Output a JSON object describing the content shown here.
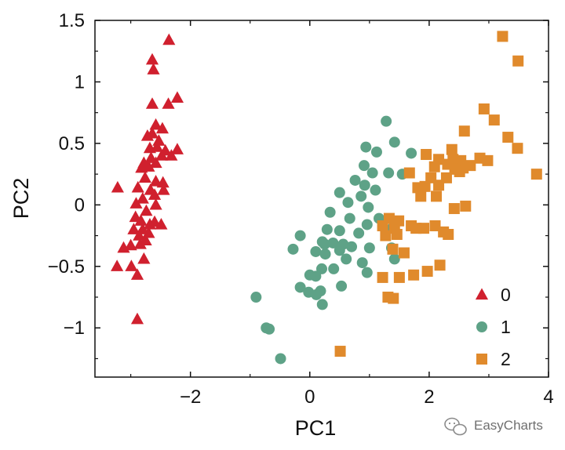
{
  "chart_data": {
    "type": "scatter",
    "xlabel": "PC1",
    "ylabel": "PC2",
    "xlim": [
      -3.6,
      4.0
    ],
    "ylim": [
      -1.4,
      1.5
    ],
    "xticks": [
      -2,
      0,
      2,
      4
    ],
    "xtick_labels": [
      "−2",
      "0",
      "2",
      "4"
    ],
    "yticks": [
      -1,
      -0.5,
      0,
      0.5,
      1,
      1.5
    ],
    "ytick_labels": [
      "−1",
      "−0.5",
      "0",
      "0.5",
      "1",
      "1.5"
    ],
    "grid": false,
    "legend_position": "bottom-right",
    "series": [
      {
        "name": "0",
        "marker": "triangle",
        "color": "#d0202e",
        "points": [
          [
            -2.36,
            1.34
          ],
          [
            -2.64,
            1.18
          ],
          [
            -2.62,
            1.1
          ],
          [
            -2.22,
            0.87
          ],
          [
            -2.64,
            0.82
          ],
          [
            -2.37,
            0.82
          ],
          [
            -2.58,
            0.65
          ],
          [
            -2.47,
            0.62
          ],
          [
            -2.64,
            0.58
          ],
          [
            -2.72,
            0.56
          ],
          [
            -2.53,
            0.52
          ],
          [
            -2.56,
            0.47
          ],
          [
            -2.68,
            0.46
          ],
          [
            -2.42,
            0.44
          ],
          [
            -2.48,
            0.4
          ],
          [
            -2.22,
            0.45
          ],
          [
            -2.32,
            0.4
          ],
          [
            -2.66,
            0.38
          ],
          [
            -2.78,
            0.34
          ],
          [
            -2.58,
            0.34
          ],
          [
            -2.7,
            0.31
          ],
          [
            -2.82,
            0.3
          ],
          [
            -2.76,
            0.22
          ],
          [
            -2.58,
            0.19
          ],
          [
            -2.46,
            0.18
          ],
          [
            -2.88,
            0.14
          ],
          [
            -2.67,
            0.12
          ],
          [
            -2.45,
            0.12
          ],
          [
            -3.22,
            0.14
          ],
          [
            -2.6,
            0.08
          ],
          [
            -2.8,
            0.05
          ],
          [
            -2.91,
            0.01
          ],
          [
            -2.58,
            0.0
          ],
          [
            -2.74,
            -0.05
          ],
          [
            -2.92,
            -0.1
          ],
          [
            -2.83,
            -0.13
          ],
          [
            -2.6,
            -0.14
          ],
          [
            -2.68,
            -0.16
          ],
          [
            -2.49,
            -0.16
          ],
          [
            -2.8,
            -0.2
          ],
          [
            -2.95,
            -0.2
          ],
          [
            -2.7,
            -0.23
          ],
          [
            -2.86,
            -0.25
          ],
          [
            -2.75,
            -0.29
          ],
          [
            -2.84,
            -0.32
          ],
          [
            -3.0,
            -0.33
          ],
          [
            -3.12,
            -0.35
          ],
          [
            -2.78,
            -0.44
          ],
          [
            -3.23,
            -0.5
          ],
          [
            -2.99,
            -0.5
          ],
          [
            -2.89,
            -0.57
          ],
          [
            -2.89,
            -0.93
          ]
        ]
      },
      {
        "name": "1",
        "marker": "circle",
        "color": "#5ea287",
        "points": [
          [
            1.28,
            0.68
          ],
          [
            0.94,
            0.47
          ],
          [
            1.42,
            0.51
          ],
          [
            1.12,
            0.43
          ],
          [
            1.7,
            0.42
          ],
          [
            0.91,
            0.32
          ],
          [
            1.05,
            0.26
          ],
          [
            1.32,
            0.26
          ],
          [
            1.55,
            0.25
          ],
          [
            0.76,
            0.2
          ],
          [
            0.92,
            0.16
          ],
          [
            1.1,
            0.12
          ],
          [
            0.5,
            0.1
          ],
          [
            0.86,
            0.07
          ],
          [
            0.64,
            0.02
          ],
          [
            0.98,
            -0.02
          ],
          [
            0.34,
            -0.06
          ],
          [
            0.67,
            -0.11
          ],
          [
            1.16,
            -0.11
          ],
          [
            0.96,
            -0.16
          ],
          [
            1.38,
            -0.19
          ],
          [
            0.29,
            -0.2
          ],
          [
            0.5,
            -0.21
          ],
          [
            0.82,
            -0.23
          ],
          [
            -0.16,
            -0.25
          ],
          [
            0.21,
            -0.3
          ],
          [
            0.39,
            -0.31
          ],
          [
            0.56,
            -0.32
          ],
          [
            0.25,
            -0.32
          ],
          [
            0.7,
            -0.34
          ],
          [
            1.0,
            -0.35
          ],
          [
            1.37,
            -0.35
          ],
          [
            -0.28,
            -0.36
          ],
          [
            0.1,
            -0.38
          ],
          [
            0.5,
            -0.37
          ],
          [
            0.26,
            -0.4
          ],
          [
            0.61,
            -0.44
          ],
          [
            1.42,
            -0.44
          ],
          [
            0.88,
            -0.47
          ],
          [
            0.2,
            -0.52
          ],
          [
            0.4,
            -0.52
          ],
          [
            0.1,
            -0.58
          ],
          [
            0.96,
            -0.55
          ],
          [
            0.0,
            -0.57
          ],
          [
            0.53,
            -0.66
          ],
          [
            -0.16,
            -0.67
          ],
          [
            0.18,
            -0.7
          ],
          [
            -0.02,
            -0.71
          ],
          [
            0.11,
            -0.73
          ],
          [
            -0.9,
            -0.75
          ],
          [
            0.21,
            -0.81
          ],
          [
            -0.73,
            -1.0
          ],
          [
            -0.68,
            -1.01
          ],
          [
            -0.49,
            -1.25
          ]
        ]
      },
      {
        "name": "2",
        "marker": "square",
        "color": "#e08a2c",
        "points": [
          [
            3.23,
            1.37
          ],
          [
            3.49,
            1.17
          ],
          [
            2.92,
            0.78
          ],
          [
            3.09,
            0.69
          ],
          [
            2.59,
            0.6
          ],
          [
            3.32,
            0.55
          ],
          [
            3.48,
            0.46
          ],
          [
            2.38,
            0.45
          ],
          [
            1.95,
            0.41
          ],
          [
            2.16,
            0.37
          ],
          [
            2.85,
            0.38
          ],
          [
            2.4,
            0.37
          ],
          [
            2.53,
            0.36
          ],
          [
            2.31,
            0.33
          ],
          [
            2.98,
            0.36
          ],
          [
            2.09,
            0.31
          ],
          [
            2.57,
            0.3
          ],
          [
            2.69,
            0.32
          ],
          [
            2.43,
            0.29
          ],
          [
            2.51,
            0.27
          ],
          [
            1.67,
            0.26
          ],
          [
            3.8,
            0.25
          ],
          [
            2.29,
            0.22
          ],
          [
            2.03,
            0.22
          ],
          [
            2.16,
            0.16
          ],
          [
            1.93,
            0.15
          ],
          [
            1.81,
            0.14
          ],
          [
            1.86,
            0.07
          ],
          [
            2.12,
            0.07
          ],
          [
            2.61,
            -0.01
          ],
          [
            2.42,
            -0.03
          ],
          [
            1.33,
            -0.11
          ],
          [
            1.49,
            -0.13
          ],
          [
            1.22,
            -0.17
          ],
          [
            1.42,
            -0.19
          ],
          [
            1.7,
            -0.17
          ],
          [
            1.91,
            -0.19
          ],
          [
            2.1,
            -0.17
          ],
          [
            2.24,
            -0.22
          ],
          [
            1.27,
            -0.25
          ],
          [
            1.46,
            -0.24
          ],
          [
            1.78,
            -0.19
          ],
          [
            2.32,
            -0.24
          ],
          [
            1.39,
            -0.36
          ],
          [
            1.58,
            -0.39
          ],
          [
            2.18,
            -0.49
          ],
          [
            1.97,
            -0.54
          ],
          [
            1.74,
            -0.57
          ],
          [
            1.5,
            -0.59
          ],
          [
            1.22,
            -0.59
          ],
          [
            1.4,
            -0.76
          ],
          [
            1.31,
            -0.75
          ],
          [
            0.51,
            -1.19
          ]
        ]
      }
    ]
  },
  "watermark": {
    "text": "EasyCharts",
    "icon": "wechat-icon"
  }
}
